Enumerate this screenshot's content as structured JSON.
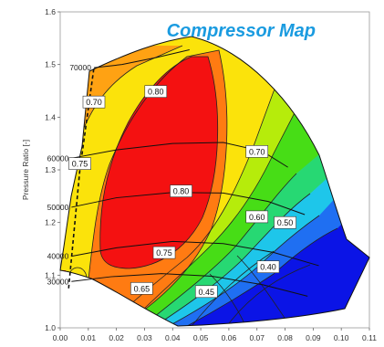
{
  "chart_data": {
    "type": "contour",
    "title": "Compressor Map",
    "xlabel": "",
    "ylabel": "Pressure Ratio [-]",
    "xlim": [
      0.0,
      0.11
    ],
    "ylim": [
      1.0,
      1.6
    ],
    "x_ticks": [
      "0.00",
      "0.01",
      "0.02",
      "0.03",
      "0.04",
      "0.05",
      "0.06",
      "0.07",
      "0.08",
      "0.09",
      "0.10",
      "0.11"
    ],
    "y_ticks": [
      "1.0",
      "1.1",
      "1.2",
      "1.3",
      "1.4",
      "1.5",
      "1.6"
    ],
    "speed_lines": [
      {
        "label": "70000",
        "points": [
          [
            0.012,
            1.494
          ],
          [
            0.022,
            1.5
          ],
          [
            0.034,
            1.513
          ],
          [
            0.046,
            1.528
          ]
        ]
      },
      {
        "label": "60000",
        "points": [
          [
            0.004,
            1.322
          ],
          [
            0.02,
            1.338
          ],
          [
            0.04,
            1.35
          ],
          [
            0.058,
            1.352
          ],
          [
            0.072,
            1.335
          ],
          [
            0.081,
            1.305
          ]
        ]
      },
      {
        "label": "50000",
        "points": [
          [
            0.004,
            1.229
          ],
          [
            0.02,
            1.247
          ],
          [
            0.04,
            1.257
          ],
          [
            0.058,
            1.256
          ],
          [
            0.074,
            1.24
          ],
          [
            0.087,
            1.215
          ]
        ]
      },
      {
        "label": "40000",
        "points": [
          [
            0.004,
            1.136
          ],
          [
            0.02,
            1.152
          ],
          [
            0.04,
            1.164
          ],
          [
            0.058,
            1.16
          ],
          [
            0.076,
            1.143
          ],
          [
            0.092,
            1.118
          ]
        ]
      },
      {
        "label": "30000",
        "points": [
          [
            0.004,
            1.088
          ],
          [
            0.018,
            1.097
          ],
          [
            0.036,
            1.103
          ],
          [
            0.054,
            1.098
          ],
          [
            0.072,
            1.082
          ],
          [
            0.088,
            1.06
          ]
        ]
      }
    ],
    "efficiency_labels": [
      {
        "label": "0.70",
        "x": 0.012,
        "y": 1.428
      },
      {
        "label": "0.80",
        "x": 0.034,
        "y": 1.448
      },
      {
        "label": "0.75",
        "x": 0.007,
        "y": 1.311
      },
      {
        "label": "0.70",
        "x": 0.07,
        "y": 1.334
      },
      {
        "label": "0.80",
        "x": 0.043,
        "y": 1.259
      },
      {
        "label": "0.60",
        "x": 0.07,
        "y": 1.21
      },
      {
        "label": "0.50",
        "x": 0.08,
        "y": 1.199
      },
      {
        "label": "0.75",
        "x": 0.037,
        "y": 1.142
      },
      {
        "label": "0.40",
        "x": 0.074,
        "y": 1.115
      },
      {
        "label": "0.65",
        "x": 0.029,
        "y": 1.074
      },
      {
        "label": "0.45",
        "x": 0.052,
        "y": 1.068
      }
    ],
    "efficiency_levels": [
      {
        "label": "0.40",
        "color": "#0b14e6"
      },
      {
        "label": "0.45",
        "color": "#1f6ff2"
      },
      {
        "label": "0.50",
        "color": "#1ec6ea"
      },
      {
        "label": "0.55",
        "color": "#27d873"
      },
      {
        "label": "0.60",
        "color": "#47dd16"
      },
      {
        "label": "0.65",
        "color": "#b6ec0b"
      },
      {
        "label": "0.70",
        "color": "#fbe30b"
      },
      {
        "label": "0.75",
        "color": "#ffa213"
      },
      {
        "label": "0.775",
        "color": "#ff7b12"
      },
      {
        "label": "0.80",
        "color": "#f41111"
      }
    ],
    "surge_line": [
      [
        0.003,
        1.075
      ],
      [
        0.007,
        1.3
      ],
      [
        0.012,
        1.494
      ]
    ],
    "colors": {
      "title": "#1a9be0"
    }
  }
}
